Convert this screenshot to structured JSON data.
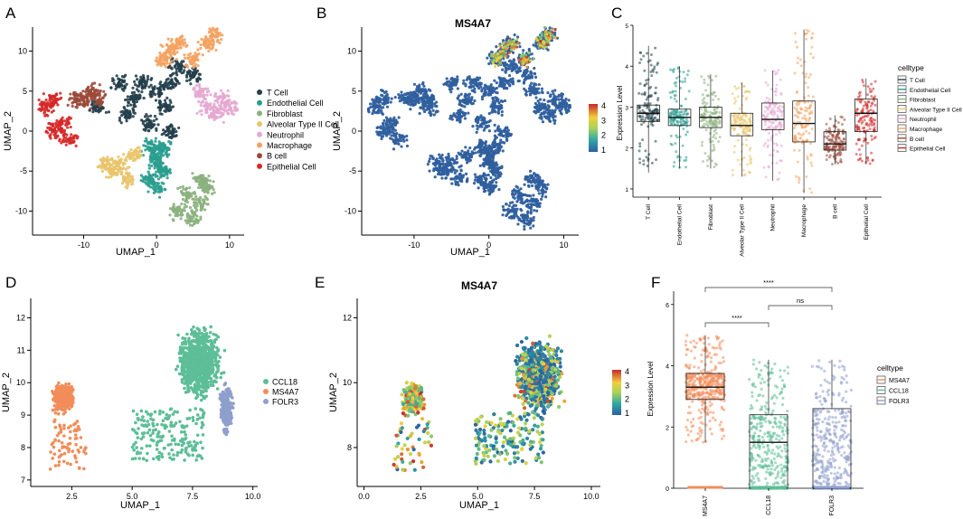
{
  "panel_labels": [
    "A",
    "B",
    "C",
    "D",
    "E",
    "F"
  ],
  "chart_data": [
    {
      "id": "A",
      "type": "scatter",
      "title": "",
      "xlabel": "UMAP_1",
      "ylabel": "UMAP_2",
      "xlim": [
        -17,
        12
      ],
      "ylim": [
        -13,
        13
      ],
      "xticks": [
        -10,
        0,
        10
      ],
      "yticks": [
        -10,
        -5,
        0,
        5,
        10
      ],
      "legend": {
        "title": "",
        "position": "right",
        "items": [
          {
            "name": "T Cell",
            "color": "#233f4b"
          },
          {
            "name": "Endothelial Cell",
            "color": "#2a9d8f"
          },
          {
            "name": "Fibroblast",
            "color": "#8ab17d"
          },
          {
            "name": "Alveolar Type II Cell",
            "color": "#e9c46a"
          },
          {
            "name": "Neutrophil",
            "color": "#e5a8d2"
          },
          {
            "name": "Macrophage",
            "color": "#f4a261"
          },
          {
            "name": "B cell",
            "color": "#9b4a3a"
          },
          {
            "name": "Epithelial Cell",
            "color": "#d62828"
          }
        ]
      },
      "clusters": [
        {
          "name": "T Cell",
          "points": [
            [
              -2,
              6
            ],
            [
              0,
              5
            ],
            [
              2,
              6
            ],
            [
              3,
              8
            ],
            [
              5,
              7
            ],
            [
              -3,
              4
            ],
            [
              1,
              3
            ],
            [
              -1,
              1
            ],
            [
              -4,
              2
            ],
            [
              -8,
              3
            ],
            [
              -5,
              6
            ],
            [
              2,
              0
            ]
          ]
        },
        {
          "name": "Endothelial Cell",
          "points": [
            [
              -1,
              -2
            ],
            [
              0,
              -4
            ],
            [
              -1,
              -6
            ],
            [
              1,
              -5
            ],
            [
              0,
              -3
            ],
            [
              1,
              -2
            ],
            [
              0,
              -7
            ]
          ]
        },
        {
          "name": "Fibroblast",
          "points": [
            [
              4,
              -8
            ],
            [
              6,
              -9
            ],
            [
              5,
              -11
            ],
            [
              7,
              -7
            ],
            [
              3,
              -10
            ],
            [
              6,
              -6
            ]
          ]
        },
        {
          "name": "Alveolar Type II Cell",
          "points": [
            [
              -5,
              -4
            ],
            [
              -6,
              -5
            ],
            [
              -3,
              -3
            ],
            [
              -4,
              -6
            ],
            [
              -7,
              -4
            ]
          ]
        },
        {
          "name": "Neutrophil",
          "points": [
            [
              7,
              3
            ],
            [
              9,
              4
            ],
            [
              8,
              2
            ],
            [
              6,
              5
            ],
            [
              10,
              3
            ]
          ]
        },
        {
          "name": "Macrophage",
          "points": [
            [
              2,
              10
            ],
            [
              3,
              11
            ],
            [
              7,
              11
            ],
            [
              8,
              12
            ],
            [
              5,
              9
            ],
            [
              1,
              9
            ]
          ]
        },
        {
          "name": "B cell",
          "points": [
            [
              -10,
              4
            ],
            [
              -9,
              5
            ],
            [
              -11,
              4
            ],
            [
              -8,
              4
            ]
          ]
        },
        {
          "name": "Epithelial Cell",
          "points": [
            [
              -15,
              3
            ],
            [
              -14,
              4
            ],
            [
              -13,
              1
            ],
            [
              -12,
              -1
            ],
            [
              -14,
              0
            ]
          ]
        }
      ]
    },
    {
      "id": "B",
      "type": "scatter",
      "title": "MS4A7",
      "xlabel": "UMAP_1",
      "ylabel": "UMAP_2",
      "xlim": [
        -17,
        12
      ],
      "ylim": [
        -13,
        13
      ],
      "xticks": [
        -10,
        0,
        10
      ],
      "yticks": [
        -10,
        -5,
        0,
        5,
        10
      ],
      "colorbar": {
        "min": 1,
        "max": 4,
        "ticks": [
          1,
          2,
          3,
          4
        ]
      },
      "highlight_region": "Macrophage"
    },
    {
      "id": "C",
      "type": "box",
      "title": "",
      "xlabel": "",
      "ylabel": "Expression Level",
      "ylim": [
        0.8,
        5
      ],
      "yticks": [
        1,
        2,
        3,
        4,
        5
      ],
      "categories": [
        "T Cell",
        "Endothelial Cell",
        "Fibroblast",
        "Alveolar Type II Cell",
        "Neutrophil",
        "Macrophage",
        "B cell",
        "Epithelial Cell"
      ],
      "colors": [
        "#233f4b",
        "#2a9d8f",
        "#8ab17d",
        "#e9c46a",
        "#e5a8d2",
        "#f4a261",
        "#9b4a3a",
        "#d62828"
      ],
      "boxes": [
        {
          "q1": 2.65,
          "median": 2.85,
          "q3": 3.05,
          "min": 1.4,
          "max": 4.5
        },
        {
          "q1": 2.55,
          "median": 2.75,
          "q3": 2.95,
          "min": 1.5,
          "max": 4.0
        },
        {
          "q1": 2.5,
          "median": 2.75,
          "q3": 3.0,
          "min": 1.5,
          "max": 3.8
        },
        {
          "q1": 2.3,
          "median": 2.55,
          "q3": 2.85,
          "min": 1.3,
          "max": 3.6
        },
        {
          "q1": 2.45,
          "median": 2.7,
          "q3": 3.1,
          "min": 1.2,
          "max": 3.9
        },
        {
          "q1": 2.15,
          "median": 2.6,
          "q3": 3.15,
          "min": 0.9,
          "max": 4.9
        },
        {
          "q1": 1.95,
          "median": 2.1,
          "q3": 2.4,
          "min": 1.6,
          "max": 2.8
        },
        {
          "q1": 2.4,
          "median": 2.85,
          "q3": 3.2,
          "min": 1.6,
          "max": 3.7
        }
      ],
      "legend": {
        "title": "celltype",
        "position": "right",
        "items": [
          "T Cell",
          "Endothelial Cell",
          "Fibroblast",
          "Alveolar Type II Cell",
          "Neutrophil",
          "Macrophage",
          "B cell",
          "Epithelial Cell"
        ]
      }
    },
    {
      "id": "D",
      "type": "scatter",
      "title": "",
      "xlabel": "UMAP_1",
      "ylabel": "UMAP_2",
      "xlim": [
        0.8,
        10.2
      ],
      "ylim": [
        6.8,
        12.6
      ],
      "xticks": [
        2.5,
        5.0,
        7.5,
        10.0
      ],
      "xtick_labels": [
        "2.5",
        "5.0",
        "7.5",
        "10.0"
      ],
      "yticks": [
        7,
        8,
        9,
        10,
        11,
        12
      ],
      "legend": {
        "title": "",
        "position": "right",
        "items": [
          {
            "name": "CCL18",
            "color": "#5dbe97"
          },
          {
            "name": "MS4A7",
            "color": "#f28d5a"
          },
          {
            "name": "FOLR3",
            "color": "#8f9fcc"
          }
        ]
      }
    },
    {
      "id": "E",
      "type": "scatter",
      "title": "MS4A7",
      "xlabel": "UMAP_1",
      "ylabel": "UMAP_2",
      "xlim": [
        -0.3,
        10.4
      ],
      "ylim": [
        6.8,
        12.6
      ],
      "xticks": [
        0.0,
        2.5,
        5.0,
        7.5,
        10.0
      ],
      "xtick_labels": [
        "0.0",
        "2.5",
        "5.0",
        "7.5",
        "10.0"
      ],
      "yticks": [
        8,
        10,
        12
      ],
      "colorbar": {
        "min": 1,
        "max": 4,
        "ticks": [
          1,
          2,
          3,
          4
        ]
      }
    },
    {
      "id": "F",
      "type": "box",
      "title": "",
      "xlabel": "",
      "ylabel": "Expression Level",
      "ylim": [
        0,
        6.2
      ],
      "yticks": [
        0,
        2,
        4,
        6
      ],
      "categories": [
        "MS4A7",
        "CCL18",
        "FOLR3"
      ],
      "colors": [
        "#f28d5a",
        "#5dbe97",
        "#8f9fcc"
      ],
      "boxes": [
        {
          "q1": 2.9,
          "median": 3.3,
          "q3": 3.75,
          "min": 1.5,
          "max": 5.0
        },
        {
          "q1": 0.0,
          "median": 1.5,
          "q3": 2.4,
          "min": 0.0,
          "max": 4.2
        },
        {
          "q1": 0.0,
          "median": 0.0,
          "q3": 2.6,
          "min": 0.0,
          "max": 4.2
        }
      ],
      "comparisons": [
        {
          "from": "MS4A7",
          "to": "FOLR3",
          "label": "****"
        },
        {
          "from": "CCL18",
          "to": "FOLR3",
          "label": "ns"
        },
        {
          "from": "MS4A7",
          "to": "CCL18",
          "label": "****"
        }
      ],
      "legend": {
        "title": "celltype",
        "position": "right",
        "items": [
          "MS4A7",
          "CCL18",
          "FOLR3"
        ]
      }
    }
  ]
}
